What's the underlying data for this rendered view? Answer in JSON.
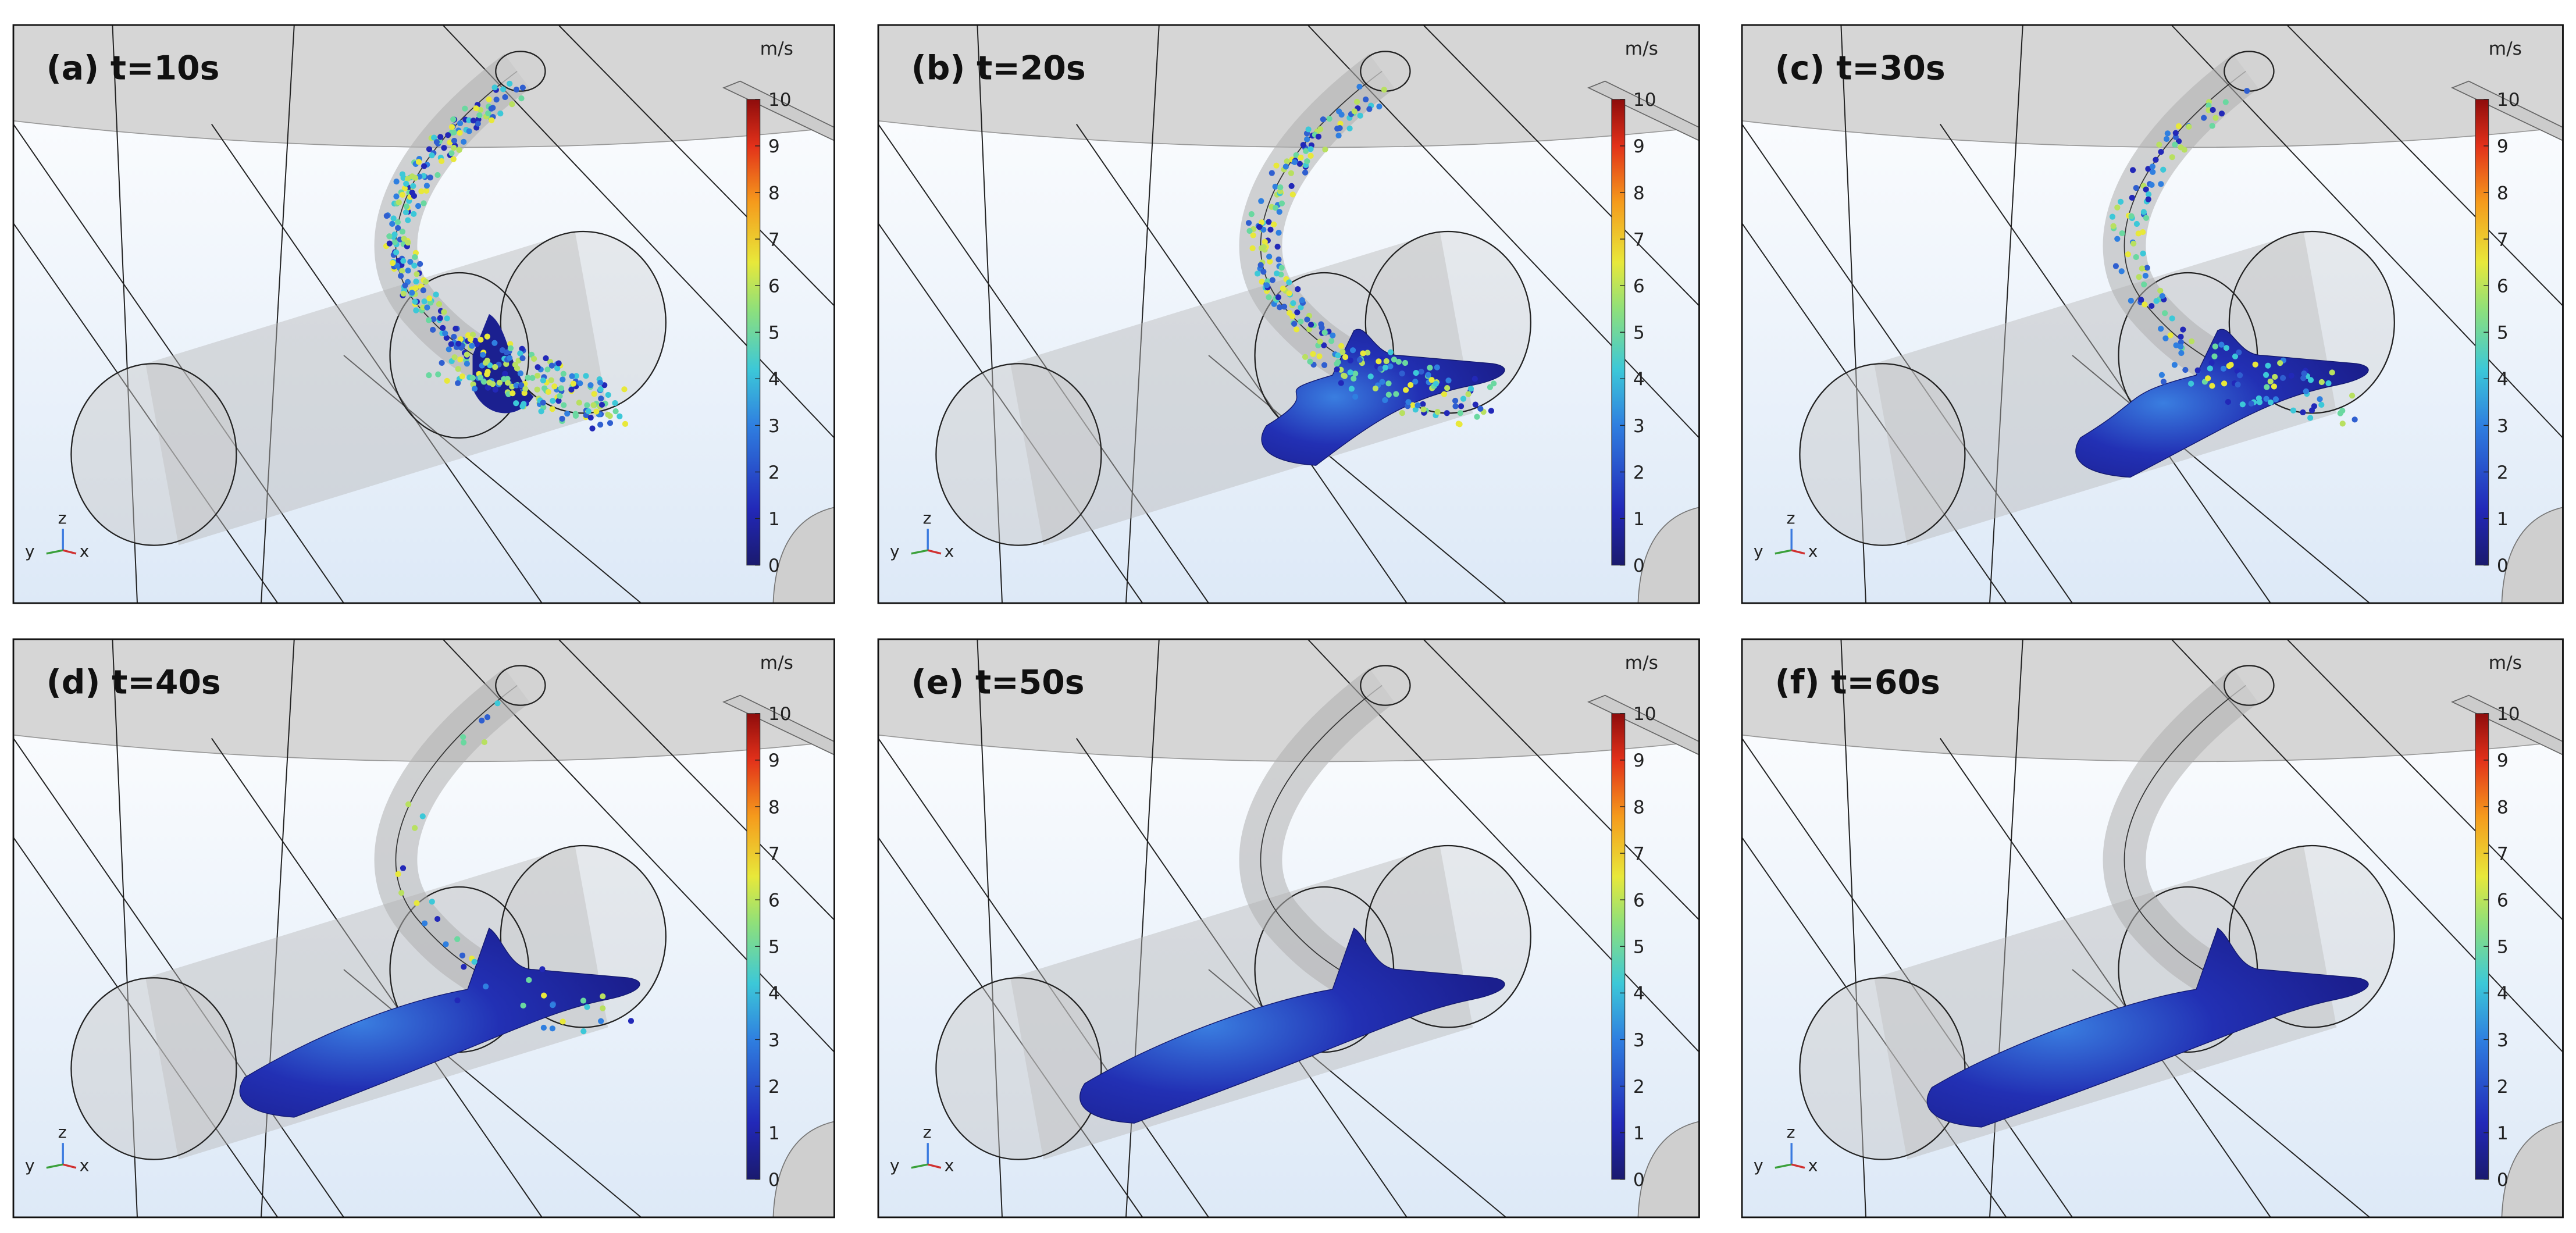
{
  "panels": [
    {
      "label": "(a) t=10s",
      "unit": "m/s",
      "colorbar_ticks": [
        0,
        1,
        2,
        3,
        4,
        5,
        6,
        7,
        8,
        9,
        10
      ],
      "axes": {
        "z": "z",
        "y": "y",
        "x": "x"
      }
    },
    {
      "label": "(b) t=20s",
      "unit": "m/s",
      "colorbar_ticks": [
        0,
        1,
        2,
        3,
        4,
        5,
        6,
        7,
        8,
        9,
        10
      ],
      "axes": {
        "z": "z",
        "y": "y",
        "x": "x"
      }
    },
    {
      "label": "(c) t=30s",
      "unit": "m/s",
      "colorbar_ticks": [
        0,
        1,
        2,
        3,
        4,
        5,
        6,
        7,
        8,
        9,
        10
      ],
      "axes": {
        "z": "z",
        "y": "y",
        "x": "x"
      }
    },
    {
      "label": "(d) t=40s",
      "unit": "m/s",
      "colorbar_ticks": [
        0,
        1,
        2,
        3,
        4,
        5,
        6,
        7,
        8,
        9,
        10
      ],
      "axes": {
        "z": "z",
        "y": "y",
        "x": "x"
      }
    },
    {
      "label": "(e) t=50s",
      "unit": "m/s",
      "colorbar_ticks": [
        0,
        1,
        2,
        3,
        4,
        5,
        6,
        7,
        8,
        9,
        10
      ],
      "axes": {
        "z": "z",
        "y": "y",
        "x": "x"
      }
    },
    {
      "label": "(f) t=60s",
      "unit": "m/s",
      "colorbar_ticks": [
        0,
        1,
        2,
        3,
        4,
        5,
        6,
        7,
        8,
        9,
        10
      ],
      "axes": {
        "z": "z",
        "y": "y",
        "x": "x"
      }
    }
  ]
}
